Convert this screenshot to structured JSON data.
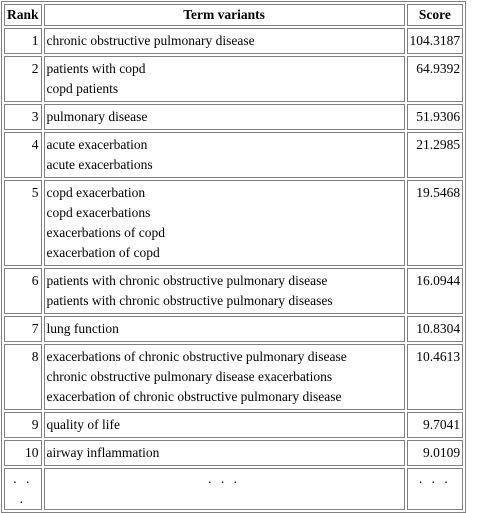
{
  "table": {
    "headers": {
      "rank": "Rank",
      "term": "Term variants",
      "score": "Score"
    },
    "rows": [
      {
        "rank": "1",
        "variants": [
          "chronic obstructive pulmonary disease"
        ],
        "score": "104.3187"
      },
      {
        "rank": "2",
        "variants": [
          "patients with copd",
          "copd patients"
        ],
        "score": "64.9392"
      },
      {
        "rank": "3",
        "variants": [
          "pulmonary disease"
        ],
        "score": "51.9306"
      },
      {
        "rank": "4",
        "variants": [
          "acute exacerbation",
          "acute exacerbations"
        ],
        "score": "21.2985"
      },
      {
        "rank": "5",
        "variants": [
          "copd exacerbation",
          "copd exacerbations",
          "exacerbations of copd",
          "exacerbation of copd"
        ],
        "score": "19.5468"
      },
      {
        "rank": "6",
        "variants": [
          "patients with chronic obstructive pulmonary disease",
          "patients with chronic obstructive pulmonary diseases"
        ],
        "score": "16.0944"
      },
      {
        "rank": "7",
        "variants": [
          "lung function"
        ],
        "score": "10.8304"
      },
      {
        "rank": "8",
        "variants": [
          "exacerbations of chronic obstructive pulmonary disease",
          "chronic obstructive pulmonary disease exacerbations",
          "exacerbation of chronic obstructive pulmonary disease"
        ],
        "score": "10.4613"
      },
      {
        "rank": "9",
        "variants": [
          "quality of life"
        ],
        "score": "9.7041"
      },
      {
        "rank": "10",
        "variants": [
          "airway inflammation"
        ],
        "score": "9.0109"
      }
    ],
    "ellipsis": {
      "rank": ". . .",
      "term": ". . .",
      "score": ". . ."
    }
  }
}
